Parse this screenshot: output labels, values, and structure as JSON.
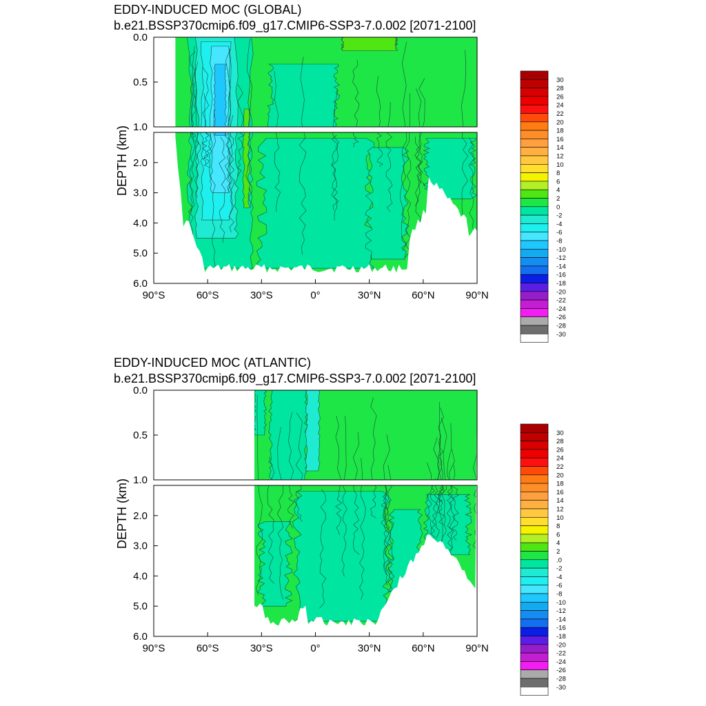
{
  "chart_data": [
    {
      "type": "heatmap",
      "title": "EDDY-INDUCED MOC (GLOBAL)",
      "subtitle": "b.e21.BSSP370cmip6.f09_g17.CMIP6-SSP3-7.0.002 [2071-2100]",
      "xlabel": "",
      "ylabel": "DEPTH (km)",
      "x_ticks": [
        "90°S",
        "60°S",
        "30°S",
        "0°",
        "30°N",
        "60°N",
        "90°N"
      ],
      "y_ticks_upper": [
        "0.0",
        "0.5",
        "1.0"
      ],
      "y_ticks_lower": [
        "2.0",
        "3.0",
        "4.0",
        "5.0",
        "6.0"
      ],
      "xlim": [
        -90,
        90
      ],
      "ylim": [
        0,
        6
      ],
      "y_break_km": 1.0,
      "data_extent": {
        "lat_min": -78,
        "lat_max": 90,
        "max_depth_km": 5.5
      },
      "features": [
        {
          "lat": -52,
          "depth_km": 0.5,
          "value": -10
        },
        {
          "lat": -50,
          "depth_km": 2.8,
          "value": -6
        },
        {
          "lat": 35,
          "depth_km": 0.05,
          "value": 4
        },
        {
          "lat": 10,
          "depth_km": 3.0,
          "value": -2
        },
        {
          "lat": 80,
          "depth_km": 0.5,
          "value": 2
        }
      ],
      "colorbar": {
        "labels": [
          "30",
          "28",
          "26",
          "24",
          "22",
          "20",
          "18",
          "16",
          "14",
          "12",
          "10",
          "8",
          "6",
          "4",
          "2",
          "0",
          "-2",
          "-4",
          "-6",
          "-8",
          "-10",
          "-12",
          "-14",
          "-16",
          "-18",
          "-20",
          "-22",
          "-24",
          "-26",
          "-28",
          "-30"
        ],
        "colors": [
          "#a80000",
          "#c00000",
          "#d80000",
          "#ee0000",
          "#ff1010",
          "#ff4a0a",
          "#ff7c14",
          "#ff8e28",
          "#ffa040",
          "#ffb040",
          "#ffc840",
          "#ffde30",
          "#f4f400",
          "#b4f028",
          "#50e614",
          "#1ee646",
          "#00e6a0",
          "#1eebd2",
          "#1ef0f0",
          "#46e6ff",
          "#1ec8ff",
          "#14aaf0",
          "#148cf0",
          "#146ef0",
          "#0a1ee6",
          "#5a1ee6",
          "#961ec8",
          "#c31ed2",
          "#f01ef0",
          "#aaaaaa",
          "#6e6e6e",
          "#ffffff"
        ]
      }
    },
    {
      "type": "heatmap",
      "title": "EDDY-INDUCED MOC (ATLANTIC)",
      "subtitle": "b.e21.BSSP370cmip6.f09_g17.CMIP6-SSP3-7.0.002 [2071-2100]",
      "xlabel": "",
      "ylabel": "DEPTH (km)",
      "x_ticks": [
        "90°S",
        "60°S",
        "30°S",
        "0°",
        "30°N",
        "60°N",
        "90°N"
      ],
      "y_ticks_upper": [
        "0.0",
        "0.5",
        "1.0"
      ],
      "y_ticks_lower": [
        "2.0",
        "3.0",
        "4.0",
        "5.0",
        "6.0"
      ],
      "xlim": [
        -90,
        90
      ],
      "ylim": [
        0,
        6
      ],
      "y_break_km": 1.0,
      "data_extent": {
        "lat_min": -34,
        "lat_max": 90,
        "max_depth_km": 5.5
      },
      "features": [
        {
          "lat": -5,
          "depth_km": 0.4,
          "value": -2
        },
        {
          "lat": 20,
          "depth_km": 0.3,
          "value": 2
        },
        {
          "lat": 5,
          "depth_km": 3.0,
          "value": -2
        },
        {
          "lat": -20,
          "depth_km": 3.5,
          "value": 2
        }
      ],
      "colorbar": {
        "labels": [
          "30",
          "28",
          "26",
          "24",
          "22",
          "20",
          "18",
          "16",
          "14",
          "12",
          "10",
          "8",
          "6",
          "4",
          "2",
          ".0",
          "-2",
          "-4",
          "-6",
          "-8",
          "-10",
          "-12",
          "-14",
          "-16",
          "-18",
          "-20",
          "-22",
          "-24",
          "-26",
          "-28",
          "-30"
        ],
        "colors": [
          "#a80000",
          "#c00000",
          "#d80000",
          "#ee0000",
          "#ff1010",
          "#ff4a0a",
          "#ff7c14",
          "#ff8e28",
          "#ffa040",
          "#ffb040",
          "#ffc840",
          "#ffde30",
          "#f4f400",
          "#b4f028",
          "#50e614",
          "#1ee646",
          "#00e6a0",
          "#1eebd2",
          "#1ef0f0",
          "#46e6ff",
          "#1ec8ff",
          "#14aaf0",
          "#148cf0",
          "#146ef0",
          "#0a1ee6",
          "#5a1ee6",
          "#961ec8",
          "#c31ed2",
          "#f01ef0",
          "#aaaaaa",
          "#6e6e6e",
          "#ffffff"
        ]
      }
    }
  ]
}
